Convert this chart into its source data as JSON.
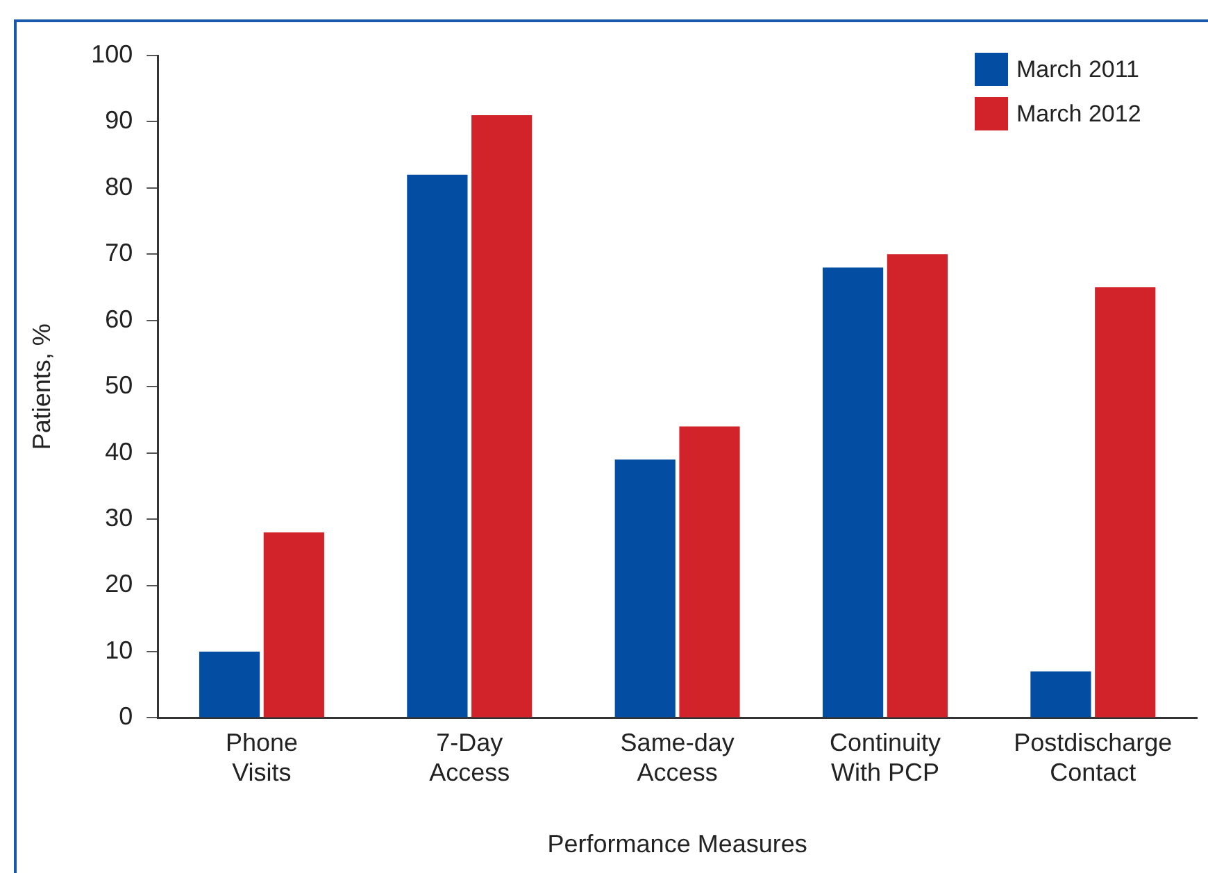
{
  "chart_data": {
    "type": "bar",
    "xlabel": "Performance Measures",
    "ylabel": "Patients, %",
    "categories": [
      "Phone\nVisits",
      "7-Day\nAccess",
      "Same-day\nAccess",
      "Continuity\nWith PCP",
      "Postdischarge\nContact"
    ],
    "series": [
      {
        "name": "March 2011",
        "color": "#034ea2",
        "values": [
          10,
          82,
          39,
          68,
          7
        ]
      },
      {
        "name": "March 2012",
        "color": "#d2232a",
        "values": [
          28,
          91,
          44,
          70,
          65
        ]
      }
    ],
    "ylim": [
      0,
      100
    ],
    "yticks": [
      0,
      10,
      20,
      30,
      40,
      50,
      60,
      70,
      80,
      90,
      100
    ],
    "grid": false,
    "legend": "top right"
  }
}
